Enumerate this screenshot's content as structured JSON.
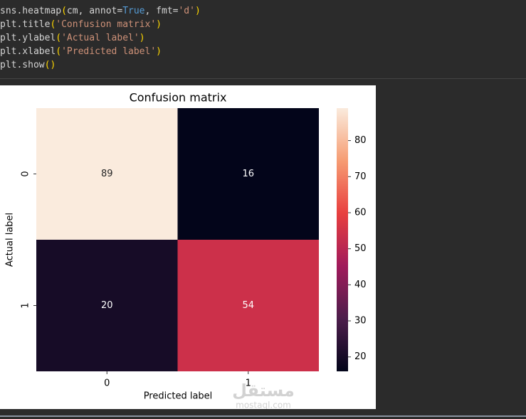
{
  "code": {
    "lines": [
      "sns.heatmap(cm, annot=True, fmt='d')",
      "plt.title('Confusion matrix')",
      "plt.ylabel('Actual label')",
      "plt.xlabel('Predicted label')",
      "plt.show()"
    ]
  },
  "chart_data": {
    "type": "heatmap",
    "title": "Confusion matrix",
    "xlabel": "Predicted label",
    "ylabel": "Actual label",
    "x_categories": [
      "0",
      "1"
    ],
    "y_categories": [
      "0",
      "1"
    ],
    "values": [
      [
        89,
        16
      ],
      [
        20,
        54
      ]
    ],
    "colormap": "rocket",
    "clim": [
      16,
      89
    ],
    "cticks": [
      20,
      30,
      40,
      50,
      60,
      70,
      80
    ]
  },
  "watermark": {
    "text": "مستقل",
    "site": "mostaql.com"
  }
}
